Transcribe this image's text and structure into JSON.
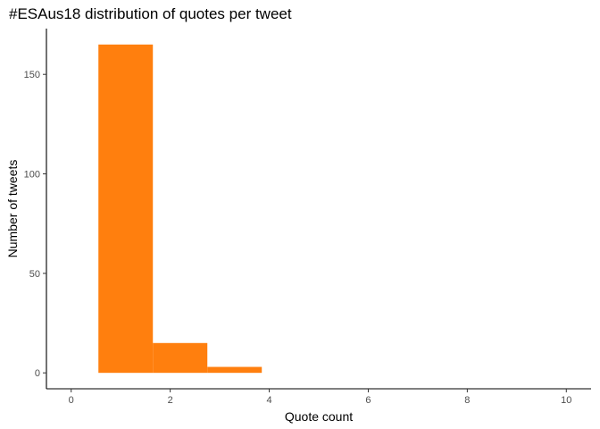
{
  "chart_data": {
    "type": "bar",
    "title": "#ESAus18 distribution of quotes per tweet",
    "xlabel": "Quote count",
    "ylabel": "Number of tweets",
    "bins": [
      {
        "x0": 0.55,
        "x1": 1.65,
        "count": 165
      },
      {
        "x0": 1.65,
        "x1": 2.75,
        "count": 15
      },
      {
        "x0": 2.75,
        "x1": 3.85,
        "count": 3
      }
    ],
    "xlim": [
      -0.5,
      10.5
    ],
    "ylim": [
      -8,
      173
    ],
    "xticks": [
      0,
      2,
      4,
      6,
      8,
      10
    ],
    "yticks": [
      0,
      50,
      100,
      150
    ],
    "bar_color": "#FF7F0E",
    "grid": false,
    "legend": "none"
  }
}
